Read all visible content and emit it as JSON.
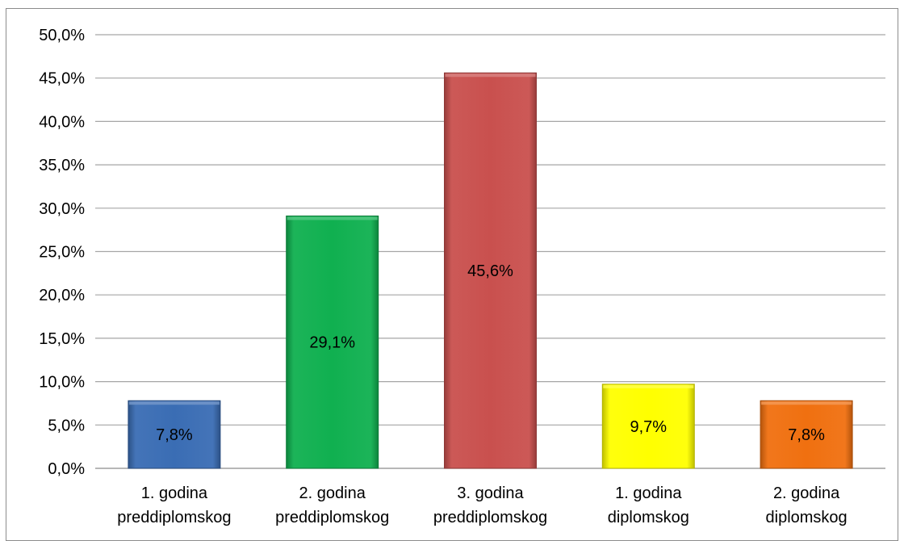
{
  "chart_data": {
    "type": "bar",
    "categories": [
      [
        "1. godina",
        "preddiplomskog"
      ],
      [
        "2. godina",
        "preddiplomskog"
      ],
      [
        "3. godina",
        "preddiplomskog"
      ],
      [
        "1. godina",
        "diplomskog"
      ],
      [
        "2. godina",
        "diplomskog"
      ]
    ],
    "values": [
      7.8,
      29.1,
      45.6,
      9.7,
      7.8
    ],
    "data_labels": [
      "7,8%",
      "29,1%",
      "45,6%",
      "9,7%",
      "7,8%"
    ],
    "colors": [
      "#3a6db4",
      "#10b050",
      "#c9504e",
      "#ffff00",
      "#f07010"
    ],
    "ylim": [
      0,
      50
    ],
    "yticks": [
      0,
      5,
      10,
      15,
      20,
      25,
      30,
      35,
      40,
      45,
      50
    ],
    "ytick_labels": [
      "0,0%",
      "5,0%",
      "10,0%",
      "15,0%",
      "20,0%",
      "25,0%",
      "30,0%",
      "35,0%",
      "40,0%",
      "45,0%",
      "50,0%"
    ],
    "grid": true,
    "legend": false
  }
}
